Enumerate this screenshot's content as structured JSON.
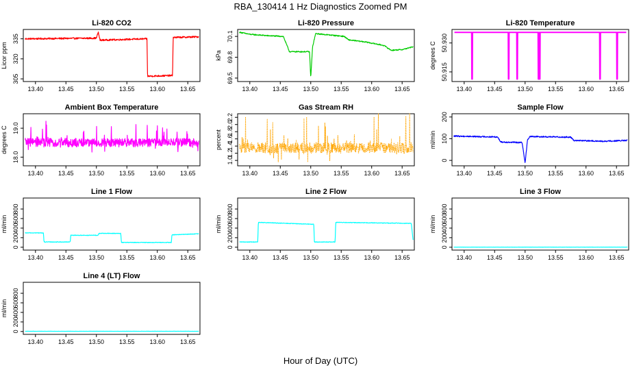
{
  "figure": {
    "title": "RBA_130414  1 Hz Diagnostics Zoomed PM",
    "xlabel": "Hour of Day (UTC)"
  },
  "chart_data": [
    {
      "id": "co2",
      "type": "line",
      "title": "Li-820 CO2",
      "ylabel": "Licor ppm",
      "color": "#ff0000",
      "xlim": [
        13.38,
        13.67
      ],
      "ylim": [
        303,
        342
      ],
      "xticks": [
        13.4,
        13.45,
        13.5,
        13.55,
        13.6,
        13.65
      ],
      "xtick_labels": [
        "13.40",
        "13.45",
        "13.50",
        "13.55",
        "13.60",
        "13.65"
      ],
      "yticks": [
        305,
        320,
        335
      ],
      "ytick_labels": [
        "305",
        "320",
        "335"
      ],
      "noise": 0.6,
      "segments": [
        [
          13.383,
          335.0
        ],
        [
          13.5,
          335.5
        ],
        [
          13.503,
          340.0
        ],
        [
          13.506,
          334.0
        ],
        [
          13.583,
          335.0
        ],
        [
          13.584,
          307.0
        ],
        [
          13.625,
          307.5
        ],
        [
          13.626,
          336.0
        ],
        [
          13.668,
          336.5
        ]
      ]
    },
    {
      "id": "pressure",
      "type": "line",
      "title": "Li-820 Pressure",
      "ylabel": "kPa",
      "color": "#00cc00",
      "xlim": [
        13.38,
        13.67
      ],
      "ylim": [
        69.45,
        70.2
      ],
      "xticks": [
        13.4,
        13.45,
        13.5,
        13.55,
        13.6,
        13.65
      ],
      "xtick_labels": [
        "13.40",
        "13.45",
        "13.50",
        "13.55",
        "13.60",
        "13.65"
      ],
      "yticks": [
        69.5,
        69.8,
        70.1
      ],
      "ytick_labels": [
        "69.5",
        "69.8",
        "70.1"
      ],
      "noise": 0.008,
      "segments": [
        [
          13.383,
          70.16
        ],
        [
          13.4,
          70.13
        ],
        [
          13.43,
          70.11
        ],
        [
          13.455,
          70.1
        ],
        [
          13.465,
          69.88
        ],
        [
          13.498,
          69.88
        ],
        [
          13.5,
          69.5
        ],
        [
          13.503,
          69.95
        ],
        [
          13.508,
          70.14
        ],
        [
          13.555,
          70.1
        ],
        [
          13.562,
          70.05
        ],
        [
          13.59,
          70.02
        ],
        [
          13.62,
          69.97
        ],
        [
          13.632,
          69.9
        ],
        [
          13.65,
          69.91
        ],
        [
          13.668,
          69.95
        ]
      ]
    },
    {
      "id": "temperature",
      "type": "line",
      "title": "Li-820 Temperature",
      "ylabel": "degrees C",
      "color": "#ff00ff",
      "xlim": [
        13.38,
        13.67
      ],
      "ylim": [
        50.91,
        50.937
      ],
      "xticks": [
        13.4,
        13.45,
        13.5,
        13.55,
        13.6,
        13.65
      ],
      "xtick_labels": [
        "13.40",
        "13.45",
        "13.50",
        "13.55",
        "13.60",
        "13.65"
      ],
      "yticks": [
        50.915,
        50.93
      ],
      "ytick_labels": [
        "50.915",
        "50.930"
      ],
      "baseline": 50.9355,
      "dip_to": 50.9113,
      "dips": [
        13.413,
        13.473,
        13.487,
        13.522,
        13.524,
        13.623,
        13.651
      ]
    },
    {
      "id": "ambient",
      "type": "line",
      "title": "Ambient Box Temperature",
      "ylabel": "degrees C",
      "color": "#ff00ff",
      "xlim": [
        13.38,
        13.67
      ],
      "ylim": [
        17.7,
        19.5
      ],
      "xticks": [
        13.4,
        13.45,
        13.5,
        13.55,
        13.6,
        13.65
      ],
      "xtick_labels": [
        "13.40",
        "13.45",
        "13.50",
        "13.55",
        "13.60",
        "13.65"
      ],
      "yticks": [
        18.0,
        19.0
      ],
      "ytick_labels": [
        "18.0",
        "19.0"
      ],
      "noise": 0.15,
      "spike_size": 0.5,
      "segments": [
        [
          13.383,
          18.5
        ],
        [
          13.668,
          18.5
        ]
      ]
    },
    {
      "id": "rh",
      "type": "line",
      "title": "Gas Stream RH",
      "ylabel": "percent",
      "color": "#ffa500",
      "xlim": [
        13.38,
        13.67
      ],
      "ylim": [
        0.85,
        2.3
      ],
      "xticks": [
        13.4,
        13.45,
        13.5,
        13.55,
        13.6,
        13.65
      ],
      "xtick_labels": [
        "13.40",
        "13.45",
        "13.50",
        "13.55",
        "13.60",
        "13.65"
      ],
      "yticks": [
        1.0,
        1.2,
        1.4,
        1.6,
        1.8,
        2.0,
        2.2
      ],
      "ytick_labels": [
        "1.0",
        "1.2",
        "1.4",
        "1.6",
        "1.8",
        "2.0",
        "2.2"
      ],
      "noise": 0.15,
      "spike_size": 0.7,
      "segments": [
        [
          13.383,
          1.35
        ],
        [
          13.668,
          1.35
        ]
      ]
    },
    {
      "id": "sample_flow",
      "type": "line",
      "title": "Sample Flow",
      "ylabel": "ml/min",
      "color": "#0000ff",
      "xlim": [
        13.38,
        13.67
      ],
      "ylim": [
        -25,
        215
      ],
      "xticks": [
        13.4,
        13.45,
        13.5,
        13.55,
        13.6,
        13.65
      ],
      "xtick_labels": [
        "13.40",
        "13.45",
        "13.50",
        "13.55",
        "13.60",
        "13.65"
      ],
      "yticks": [
        0,
        100,
        200
      ],
      "ytick_labels": [
        "0",
        "100",
        "200"
      ],
      "noise": 3,
      "segments": [
        [
          13.383,
          112
        ],
        [
          13.455,
          108
        ],
        [
          13.46,
          85
        ],
        [
          13.495,
          82
        ],
        [
          13.5,
          -10
        ],
        [
          13.504,
          95
        ],
        [
          13.508,
          110
        ],
        [
          13.575,
          107
        ],
        [
          13.58,
          92
        ],
        [
          13.63,
          88
        ],
        [
          13.668,
          92
        ]
      ]
    },
    {
      "id": "line1",
      "type": "line",
      "title": "Line 1 Flow",
      "ylabel": "ml/min",
      "color": "#00ffff",
      "xlim": [
        13.38,
        13.67
      ],
      "ylim": [
        -60,
        1030
      ],
      "xticks": [
        13.4,
        13.45,
        13.5,
        13.55,
        13.6,
        13.65
      ],
      "xtick_labels": [
        "13.40",
        "13.45",
        "13.50",
        "13.55",
        "13.60",
        "13.65"
      ],
      "yticks": [
        0,
        200,
        400,
        600,
        800
      ],
      "ytick_labels": [
        "0",
        "200",
        "400",
        "600",
        "800"
      ],
      "noise": 6,
      "segments": [
        [
          13.383,
          300
        ],
        [
          13.413,
          300
        ],
        [
          13.414,
          110
        ],
        [
          13.457,
          110
        ],
        [
          13.458,
          250
        ],
        [
          13.503,
          250
        ],
        [
          13.504,
          290
        ],
        [
          13.54,
          290
        ],
        [
          13.541,
          100
        ],
        [
          13.623,
          100
        ],
        [
          13.624,
          260
        ],
        [
          13.668,
          280
        ]
      ]
    },
    {
      "id": "line2",
      "type": "line",
      "title": "Line 2 Flow",
      "ylabel": "ml/min",
      "color": "#00ffff",
      "xlim": [
        13.38,
        13.67
      ],
      "ylim": [
        -60,
        1030
      ],
      "xticks": [
        13.4,
        13.45,
        13.5,
        13.55,
        13.6,
        13.65
      ],
      "xtick_labels": [
        "13.40",
        "13.45",
        "13.50",
        "13.55",
        "13.60",
        "13.65"
      ],
      "yticks": [
        0,
        200,
        400,
        600,
        800
      ],
      "ytick_labels": [
        "0",
        "200",
        "400",
        "600",
        "800"
      ],
      "noise": 6,
      "segments": [
        [
          13.383,
          110
        ],
        [
          13.413,
          110
        ],
        [
          13.414,
          520
        ],
        [
          13.505,
          480
        ],
        [
          13.506,
          110
        ],
        [
          13.54,
          110
        ],
        [
          13.541,
          520
        ],
        [
          13.665,
          500
        ],
        [
          13.668,
          150
        ]
      ]
    },
    {
      "id": "line3",
      "type": "line",
      "title": "Line 3 Flow",
      "ylabel": "ml/min",
      "color": "#00ffff",
      "xlim": [
        13.38,
        13.67
      ],
      "ylim": [
        -60,
        1030
      ],
      "xticks": [
        13.4,
        13.45,
        13.5,
        13.55,
        13.6,
        13.65
      ],
      "xtick_labels": [
        "13.40",
        "13.45",
        "13.50",
        "13.55",
        "13.60",
        "13.65"
      ],
      "yticks": [
        0,
        200,
        400,
        600,
        800
      ],
      "ytick_labels": [
        "0",
        "200",
        "400",
        "600",
        "800"
      ],
      "noise": 2,
      "segments": [
        [
          13.383,
          2
        ],
        [
          13.668,
          2
        ]
      ]
    },
    {
      "id": "line4",
      "type": "line",
      "title": "Line 4 (LT) Flow",
      "ylabel": "ml/min",
      "color": "#00ffff",
      "xlim": [
        13.38,
        13.67
      ],
      "ylim": [
        -60,
        1030
      ],
      "xticks": [
        13.4,
        13.45,
        13.5,
        13.55,
        13.6,
        13.65
      ],
      "xtick_labels": [
        "13.40",
        "13.45",
        "13.50",
        "13.55",
        "13.60",
        "13.65"
      ],
      "yticks": [
        0,
        200,
        400,
        600,
        800
      ],
      "ytick_labels": [
        "0",
        "200",
        "400",
        "600",
        "800"
      ],
      "noise": 2,
      "segments": [
        [
          13.383,
          5
        ],
        [
          13.668,
          5
        ]
      ]
    }
  ]
}
